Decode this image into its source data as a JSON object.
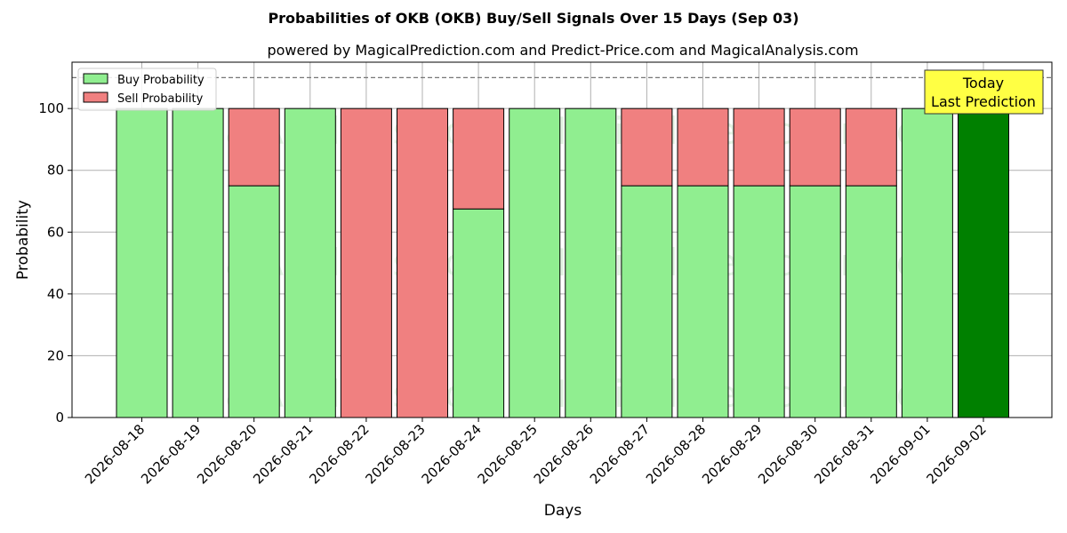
{
  "chart_data": {
    "type": "bar",
    "stacked": true,
    "title": "Probabilities of OKB (OKB) Buy/Sell Signals Over 15 Days (Sep 03)",
    "subtitle": "powered by MagicalPrediction.com and Predict-Price.com and MagicalAnalysis.com",
    "xlabel": "Days",
    "ylabel": "Probability",
    "ylim": [
      0,
      115
    ],
    "yticks": [
      0,
      20,
      40,
      60,
      80,
      100
    ],
    "reference_line": 110,
    "grid": true,
    "legend_position": "top-left",
    "categories": [
      "2026-08-18",
      "2026-08-19",
      "2026-08-20",
      "2026-08-21",
      "2026-08-22",
      "2026-08-23",
      "2026-08-24",
      "2026-08-25",
      "2026-08-26",
      "2026-08-27",
      "2026-08-28",
      "2026-08-29",
      "2026-08-30",
      "2026-08-31",
      "2026-09-01",
      "2026-09-02"
    ],
    "series": [
      {
        "name": "Buy Probability",
        "color": "#90ee90",
        "values": [
          100,
          100,
          75,
          100,
          0,
          0,
          67.5,
          100,
          100,
          75,
          75,
          75,
          75,
          75,
          100,
          100
        ]
      },
      {
        "name": "Sell Probability",
        "color": "#f08080",
        "values": [
          0,
          0,
          25,
          0,
          100,
          100,
          32.5,
          0,
          0,
          25,
          25,
          25,
          25,
          25,
          0,
          0
        ]
      }
    ],
    "highlight": {
      "category": "2026-09-02",
      "color": "#008000"
    },
    "annotation": {
      "line1": "Today",
      "line2": "Last Prediction",
      "background": "#ffff44"
    },
    "watermarks": [
      "MagicalAnalysis.com",
      "MagicalPrediction.com"
    ]
  }
}
